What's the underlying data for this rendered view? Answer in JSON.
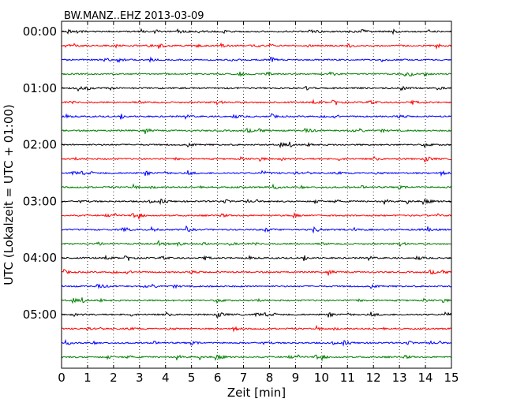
{
  "chart_data": {
    "type": "line",
    "title": "BW.MANZ..EHZ 2013-03-09",
    "xlabel": "Zeit  [min]",
    "ylabel": "UTC (Lokalzeit = UTC + 01:00)",
    "xlim": [
      0,
      15
    ],
    "x_ticks": [
      "0",
      "1",
      "2",
      "3",
      "4",
      "5",
      "6",
      "7",
      "8",
      "9",
      "10",
      "11",
      "12",
      "13",
      "14",
      "15"
    ],
    "y_ticks": [
      "00:00",
      "01:00",
      "02:00",
      "03:00",
      "04:00",
      "05:00"
    ],
    "trace_count": 24,
    "trace_interval_min": 15,
    "trace_colors": [
      "#000000",
      "#ff0000",
      "#0000ff",
      "#008000"
    ],
    "grid": "vertical dotted lines at each minute"
  }
}
